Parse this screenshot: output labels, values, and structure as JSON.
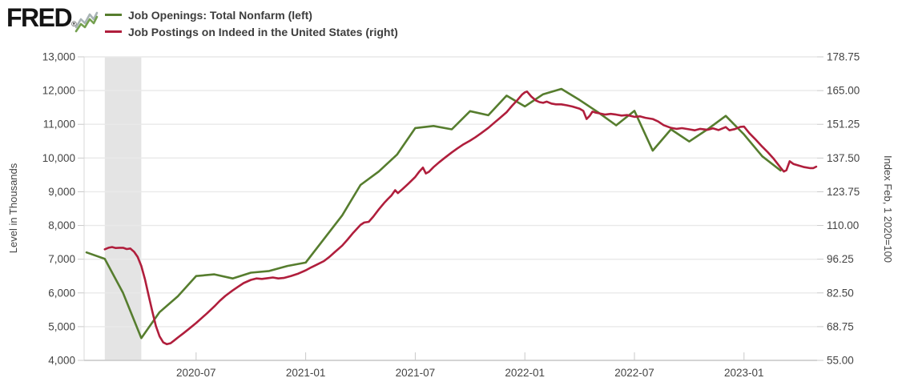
{
  "header": {
    "logo_text": "FRED",
    "registered_mark": "®",
    "legend": [
      {
        "label": "Job Openings: Total Nonfarm (left)",
        "color": "#567d2e"
      },
      {
        "label": "Job Postings on Indeed in the United States (right)",
        "color": "#b01e3c"
      }
    ]
  },
  "chart_data": {
    "type": "line",
    "title": "",
    "grid": true,
    "legend_position": "top-left",
    "background_color": "#ffffff",
    "grid_color": "#e9e9e9",
    "axis_color": "#c9c9c9",
    "text_color": "#444444",
    "x_axis": {
      "start": "2020-01",
      "end": "2023-05",
      "tick_labels": [
        "2020-07",
        "2021-01",
        "2021-07",
        "2022-01",
        "2022-07",
        "2023-01"
      ],
      "tick_month_offsets": [
        6,
        12,
        18,
        24,
        30,
        36
      ]
    },
    "left_axis": {
      "label": "Level in Thousands",
      "min": 4000,
      "max": 13000,
      "tick_labels": [
        "13,000",
        "12,000",
        "11,000",
        "10,000",
        "9,000",
        "8,000",
        "7,000",
        "6,000",
        "5,000",
        "4,000"
      ]
    },
    "right_axis": {
      "label": "Index Feb, 1 2020=100",
      "min": 55,
      "max": 178.75,
      "tick_labels": [
        "178.75",
        "165.00",
        "151.25",
        "137.50",
        "123.75",
        "110.00",
        "96.25",
        "82.50",
        "68.75",
        "55.00"
      ]
    },
    "recession_band": {
      "start_month_offset": 1,
      "end_month_offset": 3,
      "color": "#e4e4e4"
    },
    "series": [
      {
        "name": "Job Openings: Total Nonfarm",
        "axis": "left",
        "color": "#567d2e",
        "points": [
          [
            0,
            7200
          ],
          [
            1,
            7010
          ],
          [
            2,
            6000
          ],
          [
            3,
            4660
          ],
          [
            4,
            5430
          ],
          [
            5,
            5900
          ],
          [
            6,
            6500
          ],
          [
            7,
            6550
          ],
          [
            8,
            6430
          ],
          [
            9,
            6600
          ],
          [
            10,
            6650
          ],
          [
            11,
            6800
          ],
          [
            12,
            6900
          ],
          [
            13,
            7600
          ],
          [
            14,
            8300
          ],
          [
            15,
            9200
          ],
          [
            16,
            9600
          ],
          [
            17,
            10100
          ],
          [
            18,
            10890
          ],
          [
            19,
            10950
          ],
          [
            20,
            10850
          ],
          [
            21,
            11390
          ],
          [
            22,
            11270
          ],
          [
            23,
            11850
          ],
          [
            24,
            11530
          ],
          [
            25,
            11890
          ],
          [
            26,
            12050
          ],
          [
            27,
            11720
          ],
          [
            28,
            11360
          ],
          [
            29,
            10970
          ],
          [
            30,
            11400
          ],
          [
            31,
            10220
          ],
          [
            32,
            10850
          ],
          [
            33,
            10490
          ],
          [
            34,
            10850
          ],
          [
            35,
            11250
          ],
          [
            36,
            10700
          ],
          [
            37,
            10050
          ],
          [
            38,
            9630
          ]
        ]
      },
      {
        "name": "Job Postings on Indeed in the United States",
        "axis": "right",
        "color": "#b01e3c",
        "points": [
          [
            1,
            100.3
          ],
          [
            1.2,
            100.9
          ],
          [
            1.4,
            101.2
          ],
          [
            1.6,
            100.8
          ],
          [
            1.8,
            100.9
          ],
          [
            2,
            100.9
          ],
          [
            2.2,
            100.4
          ],
          [
            2.4,
            100.6
          ],
          [
            2.6,
            99.3
          ],
          [
            2.8,
            97.2
          ],
          [
            3,
            93.5
          ],
          [
            3.2,
            88
          ],
          [
            3.4,
            81.5
          ],
          [
            3.6,
            75
          ],
          [
            3.8,
            69
          ],
          [
            4,
            64.8
          ],
          [
            4.2,
            62.3
          ],
          [
            4.4,
            61.6
          ],
          [
            4.6,
            62
          ],
          [
            4.8,
            63.1
          ],
          [
            5,
            64.3
          ],
          [
            5.3,
            66
          ],
          [
            5.6,
            67.8
          ],
          [
            6,
            70.2
          ],
          [
            6.3,
            72.2
          ],
          [
            6.6,
            74.2
          ],
          [
            7,
            77
          ],
          [
            7.3,
            79.3
          ],
          [
            7.6,
            81.3
          ],
          [
            8,
            83.5
          ],
          [
            8.3,
            85
          ],
          [
            8.6,
            86.5
          ],
          [
            9,
            87.8
          ],
          [
            9.3,
            88.4
          ],
          [
            9.6,
            88.2
          ],
          [
            9.9,
            88.5
          ],
          [
            10.2,
            88.8
          ],
          [
            10.5,
            88.4
          ],
          [
            10.8,
            88.6
          ],
          [
            11.2,
            89.4
          ],
          [
            11.6,
            90.4
          ],
          [
            12,
            91.7
          ],
          [
            12.3,
            92.9
          ],
          [
            12.6,
            94
          ],
          [
            13,
            95.5
          ],
          [
            13.3,
            97.2
          ],
          [
            13.6,
            99.2
          ],
          [
            14,
            101.8
          ],
          [
            14.3,
            104.3
          ],
          [
            14.6,
            107
          ],
          [
            15,
            110.2
          ],
          [
            15.2,
            111.2
          ],
          [
            15.45,
            111.5
          ],
          [
            15.7,
            113.6
          ],
          [
            16,
            116.5
          ],
          [
            16.3,
            119.2
          ],
          [
            16.5,
            120.8
          ],
          [
            16.7,
            122.3
          ],
          [
            16.9,
            124.4
          ],
          [
            17.05,
            123.2
          ],
          [
            17.3,
            124.8
          ],
          [
            17.6,
            126.9
          ],
          [
            18,
            129.8
          ],
          [
            18.2,
            131.8
          ],
          [
            18.42,
            133.6
          ],
          [
            18.58,
            131.2
          ],
          [
            18.75,
            131.9
          ],
          [
            19,
            133.8
          ],
          [
            19.3,
            135.7
          ],
          [
            19.6,
            137.5
          ],
          [
            20,
            139.8
          ],
          [
            20.3,
            141.4
          ],
          [
            20.6,
            142.9
          ],
          [
            21,
            144.6
          ],
          [
            21.3,
            146
          ],
          [
            21.6,
            147.6
          ],
          [
            22,
            149.8
          ],
          [
            22.3,
            151.7
          ],
          [
            22.6,
            153.6
          ],
          [
            23,
            156.2
          ],
          [
            23.3,
            158.8
          ],
          [
            23.6,
            161.2
          ],
          [
            23.85,
            163.4
          ],
          [
            24,
            164.3
          ],
          [
            24.12,
            164.6
          ],
          [
            24.35,
            162.6
          ],
          [
            24.6,
            161
          ],
          [
            24.8,
            160.3
          ],
          [
            25,
            160
          ],
          [
            25.2,
            160.5
          ],
          [
            25.45,
            159.7
          ],
          [
            25.7,
            159.4
          ],
          [
            26,
            159.4
          ],
          [
            26.3,
            159
          ],
          [
            26.6,
            158.5
          ],
          [
            27,
            157.6
          ],
          [
            27.2,
            156.7
          ],
          [
            27.38,
            153.4
          ],
          [
            27.55,
            154.7
          ],
          [
            27.7,
            156.4
          ],
          [
            27.9,
            156
          ],
          [
            28.1,
            155.7
          ],
          [
            28.4,
            155.2
          ],
          [
            28.7,
            155.5
          ],
          [
            29,
            155.2
          ],
          [
            29.3,
            154.8
          ],
          [
            29.6,
            155
          ],
          [
            30,
            154.3
          ],
          [
            30.3,
            154.5
          ],
          [
            30.6,
            153.9
          ],
          [
            31,
            153.4
          ],
          [
            31.3,
            152.4
          ],
          [
            31.6,
            150.9
          ],
          [
            32,
            149.8
          ],
          [
            32.3,
            149.4
          ],
          [
            32.6,
            149.7
          ],
          [
            33,
            149.2
          ],
          [
            33.3,
            148.8
          ],
          [
            33.6,
            149.4
          ],
          [
            34,
            149
          ],
          [
            34.3,
            149.6
          ],
          [
            34.6,
            148.9
          ],
          [
            35,
            150.1
          ],
          [
            35.2,
            148.8
          ],
          [
            35.5,
            149.3
          ],
          [
            35.8,
            150.2
          ],
          [
            36,
            150.3
          ],
          [
            36.3,
            147.6
          ],
          [
            36.6,
            145.3
          ],
          [
            37,
            142.1
          ],
          [
            37.3,
            139.9
          ],
          [
            37.6,
            137.4
          ],
          [
            38,
            133.6
          ],
          [
            38.18,
            132
          ],
          [
            38.32,
            132.5
          ],
          [
            38.5,
            136.2
          ],
          [
            38.7,
            135.1
          ],
          [
            39,
            134.4
          ],
          [
            39.3,
            133.8
          ],
          [
            39.6,
            133.4
          ],
          [
            39.8,
            133.4
          ],
          [
            39.95,
            134
          ]
        ]
      }
    ]
  }
}
